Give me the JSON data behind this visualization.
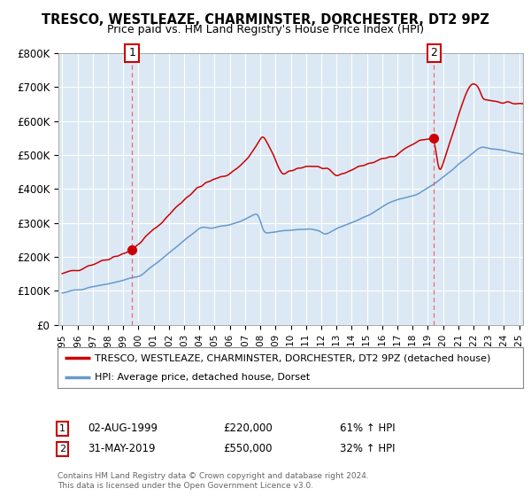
{
  "title": "TRESCO, WESTLEAZE, CHARMINSTER, DORCHESTER, DT2 9PZ",
  "subtitle": "Price paid vs. HM Land Registry's House Price Index (HPI)",
  "legend_line1": "TRESCO, WESTLEAZE, CHARMINSTER, DORCHESTER, DT2 9PZ (detached house)",
  "legend_line2": "HPI: Average price, detached house, Dorset",
  "annotation1_date": "02-AUG-1999",
  "annotation1_price": "£220,000",
  "annotation1_hpi": "61% ↑ HPI",
  "annotation1_year": 1999.58,
  "annotation1_value": 220000,
  "annotation2_date": "31-MAY-2019",
  "annotation2_price": "£550,000",
  "annotation2_hpi": "32% ↑ HPI",
  "annotation2_year": 2019.41,
  "annotation2_value": 550000,
  "ylabel_ticks": [
    "£0",
    "£100K",
    "£200K",
    "£300K",
    "£400K",
    "£500K",
    "£600K",
    "£700K",
    "£800K"
  ],
  "ytick_values": [
    0,
    100000,
    200000,
    300000,
    400000,
    500000,
    600000,
    700000,
    800000
  ],
  "xmin": 1994.75,
  "xmax": 2025.25,
  "ymin": 0,
  "ymax": 800000,
  "background_color": "#dce9f5",
  "outer_bg_color": "#ffffff",
  "red_line_color": "#cc0000",
  "blue_line_color": "#6699cc",
  "marker_color": "#cc0000",
  "vline_color": "#ee6666",
  "grid_color": "#ffffff",
  "footnote": "Contains HM Land Registry data © Crown copyright and database right 2024.\nThis data is licensed under the Open Government Licence v3.0."
}
